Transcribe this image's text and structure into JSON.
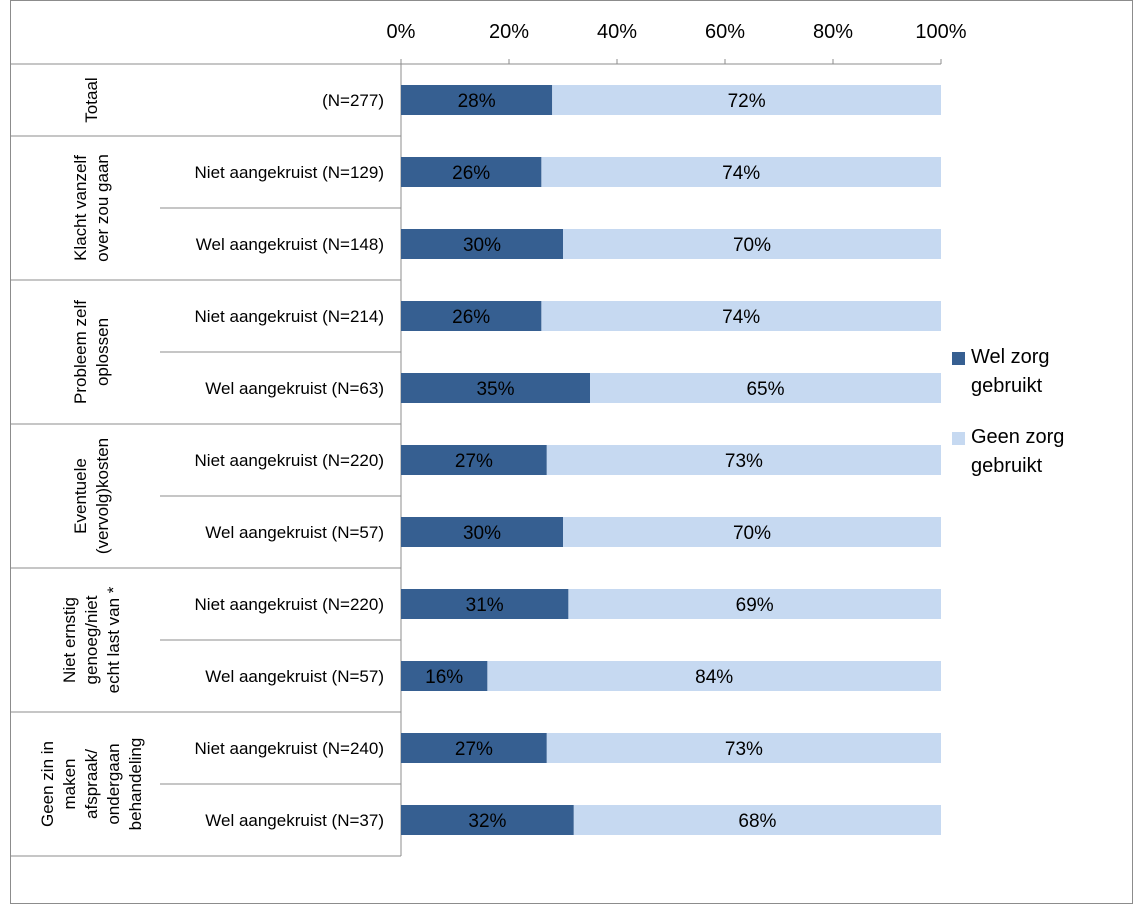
{
  "chart_data": {
    "type": "bar",
    "stacked": "percent",
    "orientation": "horizontal",
    "x_ticks": [
      "0%",
      "20%",
      "40%",
      "60%",
      "80%",
      "100%"
    ],
    "xlim": [
      0,
      100
    ],
    "legend_position": "right",
    "groups": [
      {
        "name": "Totaal",
        "rows": [
          "(N=277)"
        ]
      },
      {
        "name": "Klacht vanzelf over zou gaan",
        "rows": [
          "Niet aangekruist (N=129)",
          "Wel aangekruist (N=148)"
        ]
      },
      {
        "name": "Probleem zelf oplossen",
        "rows": [
          "Niet aangekruist (N=214)",
          "Wel aangekruist (N=63)"
        ]
      },
      {
        "name": "Eventuele (vervolg)kosten",
        "rows": [
          "Niet aangekruist (N=220)",
          "Wel aangekruist (N=57)"
        ]
      },
      {
        "name": "Niet ernstig genoeg/niet echt last van *",
        "rows": [
          "Niet aangekruist (N=220)",
          "Wel aangekruist (N=57)"
        ]
      },
      {
        "name": "Geen zin in maken afspraak/ ondergaan behandeling",
        "rows": [
          "Niet aangekruist (N=240)",
          "Wel aangekruist (N=37)"
        ]
      }
    ],
    "categories": [
      "(N=277)",
      "Niet aangekruist (N=129)",
      "Wel aangekruist (N=148)",
      "Niet aangekruist (N=214)",
      "Wel aangekruist (N=63)",
      "Niet aangekruist (N=220)",
      "Wel aangekruist (N=57)",
      "Niet aangekruist (N=220)",
      "Wel aangekruist (N=57)",
      "Niet aangekruist (N=240)",
      "Wel aangekruist (N=37)"
    ],
    "series": [
      {
        "name": "Wel zorg gebruikt",
        "color": "#365f91",
        "values": [
          28,
          26,
          30,
          26,
          35,
          27,
          30,
          31,
          16,
          27,
          32
        ],
        "labels": [
          "28%",
          "26%",
          "30%",
          "26%",
          "35%",
          "27%",
          "30%",
          "31%",
          "16%",
          "27%",
          "32%"
        ]
      },
      {
        "name": "Geen zorg gebruikt",
        "color": "#c6d9f1",
        "values": [
          72,
          74,
          70,
          74,
          65,
          73,
          70,
          69,
          84,
          73,
          68
        ],
        "labels": [
          "72%",
          "74%",
          "70%",
          "74%",
          "65%",
          "73%",
          "70%",
          "69%",
          "84%",
          "73%",
          "68%"
        ]
      }
    ]
  },
  "legend": {
    "items": [
      {
        "label": "Wel zorg gebruikt",
        "color": "#365f91"
      },
      {
        "label": "Geen zorg gebruikt",
        "color": "#c6d9f1"
      }
    ]
  }
}
